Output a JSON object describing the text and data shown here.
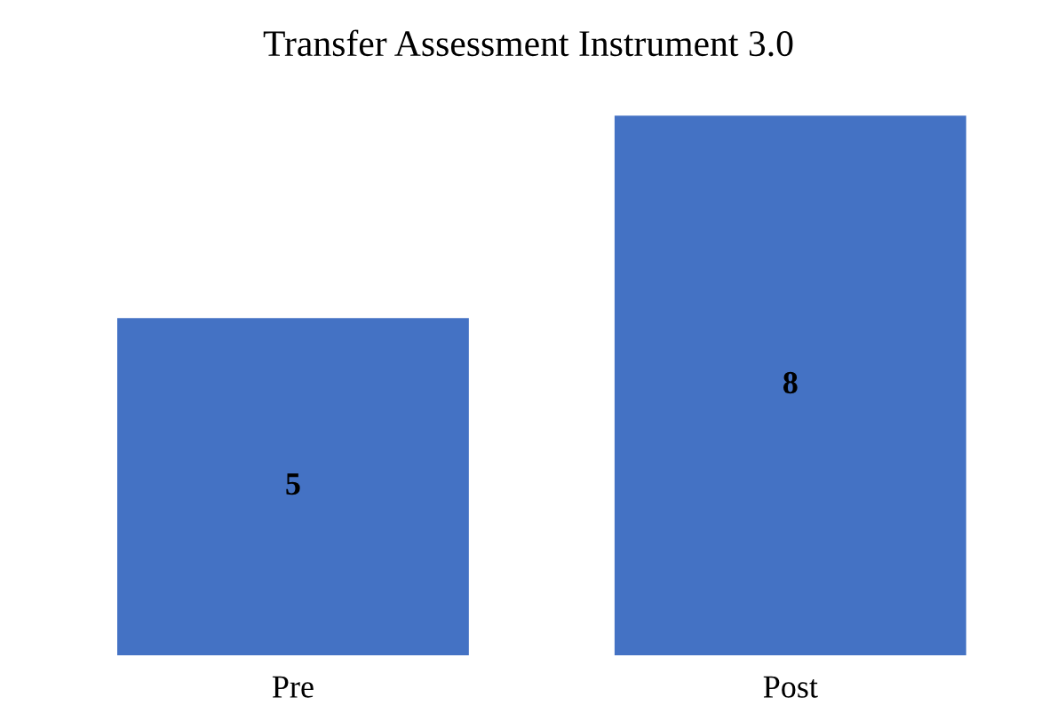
{
  "chart_data": {
    "type": "bar",
    "title": "Transfer Assessment Instrument 3.0",
    "categories": [
      "Pre",
      "Post"
    ],
    "values": [
      5,
      8
    ],
    "color": "#4472c4",
    "data_labels": true,
    "grid": false,
    "legend": false
  }
}
